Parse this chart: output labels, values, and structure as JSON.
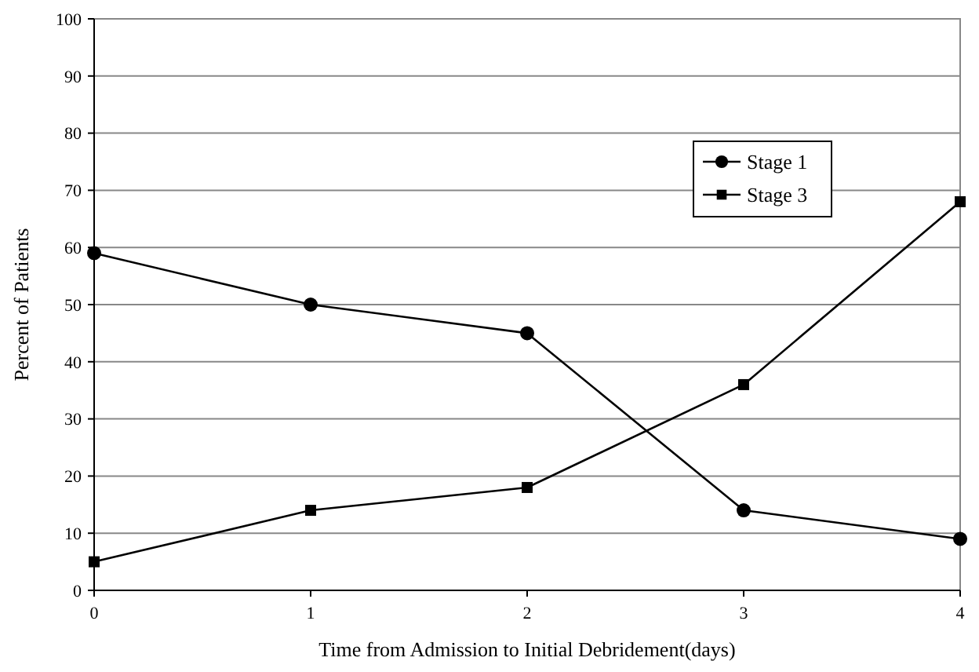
{
  "chart_data": {
    "type": "line",
    "xlabel": "Time from Admission to Initial Debridement(days)",
    "ylabel": "Percent of Patients",
    "x": [
      0,
      1,
      2,
      3,
      4
    ],
    "series": [
      {
        "name": "Stage 1",
        "color": "#000000",
        "marker": "circle",
        "values": [
          59,
          50,
          45,
          14,
          9
        ]
      },
      {
        "name": "Stage 3",
        "color": "#000000",
        "marker": "square",
        "values": [
          5,
          14,
          18,
          36,
          68
        ]
      }
    ],
    "xlim": [
      0,
      4
    ],
    "xticks": [
      0,
      1,
      2,
      3,
      4
    ],
    "ylim": [
      0,
      100
    ],
    "yticks": [
      0,
      10,
      20,
      30,
      40,
      50,
      60,
      70,
      80,
      90,
      100
    ],
    "grid": "y",
    "legend": "right",
    "line_style": "solid"
  }
}
